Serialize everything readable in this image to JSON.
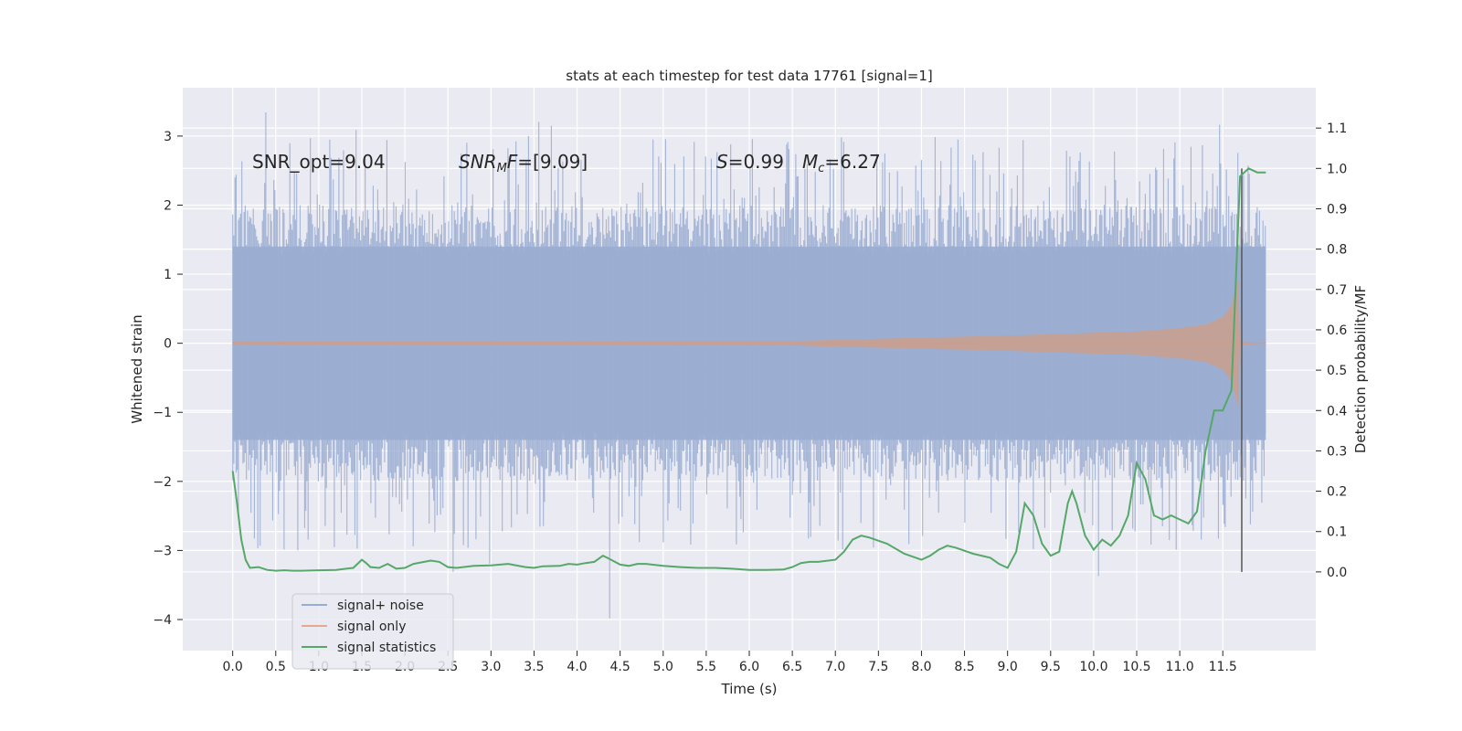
{
  "chart_data": {
    "type": "line",
    "title": "stats at each timestep for test data 17761 [signal=1]",
    "xlabel": "Time (s)",
    "ylabel": "Whitened strain",
    "ylabel_right": "Detection probability/MF",
    "xlim": [
      -0.58,
      12.58
    ],
    "ylim": [
      -4.45,
      3.7
    ],
    "ylim_right": [
      -0.195,
      1.2
    ],
    "x_ticks": [
      "0.0",
      "0.5",
      "1.0",
      "1.5",
      "2.0",
      "2.5",
      "3.0",
      "3.5",
      "4.0",
      "4.5",
      "5.0",
      "5.5",
      "6.0",
      "6.5",
      "7.0",
      "7.5",
      "8.0",
      "8.5",
      "9.0",
      "9.5",
      "10.0",
      "10.5",
      "11.0",
      "11.5"
    ],
    "y_ticks": [
      "3",
      "2",
      "1",
      "0",
      "−1",
      "−2",
      "−3",
      "−4"
    ],
    "y_ticks_right": [
      "1.1",
      "1.0",
      "0.9",
      "0.8",
      "0.7",
      "0.6",
      "0.5",
      "0.4",
      "0.3",
      "0.2",
      "0.1",
      "0.0"
    ],
    "annotations": {
      "snr_opt": "SNR_opt=9.04",
      "snr_mf_main": "SNR",
      "snr_mf_sub": "M",
      "snr_mf_rest": "F=[9.09]",
      "s_main": "S",
      "s_rest": "=0.99",
      "mc_main": "M",
      "mc_sub": "c",
      "mc_rest": "=6.27"
    },
    "grid": true,
    "legend_position": "lower-left",
    "series": [
      {
        "name": "signal+ noise",
        "color": "#9aadd1",
        "noise_band": {
          "x_start": 0.0,
          "x_end": 12.0,
          "core_amplitude": 1.4,
          "spike_max": 3.35,
          "spike_min": -4.1
        }
      },
      {
        "name": "signal only",
        "color": "#c8a090",
        "chirp_envelope": {
          "x": [
            0.0,
            6.5,
            7.0,
            8.0,
            9.0,
            10.0,
            10.5,
            11.0,
            11.3,
            11.5,
            11.6,
            11.68,
            11.7,
            12.0
          ],
          "amp": [
            0.02,
            0.03,
            0.05,
            0.08,
            0.11,
            0.15,
            0.17,
            0.22,
            0.27,
            0.38,
            0.55,
            0.93,
            0.02,
            0.0
          ]
        }
      },
      {
        "name": "signal statistics",
        "color": "#55a868",
        "x": [
          0.0,
          0.05,
          0.1,
          0.15,
          0.2,
          0.3,
          0.4,
          0.5,
          0.6,
          0.7,
          0.8,
          1.0,
          1.2,
          1.4,
          1.5,
          1.55,
          1.6,
          1.7,
          1.8,
          1.9,
          2.0,
          2.1,
          2.3,
          2.4,
          2.5,
          2.6,
          2.8,
          3.0,
          3.2,
          3.4,
          3.5,
          3.6,
          3.8,
          3.9,
          4.0,
          4.1,
          4.2,
          4.3,
          4.35,
          4.5,
          4.6,
          4.7,
          4.8,
          5.0,
          5.2,
          5.4,
          5.6,
          5.8,
          6.0,
          6.2,
          6.4,
          6.5,
          6.6,
          6.7,
          6.8,
          7.0,
          7.1,
          7.2,
          7.3,
          7.4,
          7.6,
          7.8,
          8.0,
          8.1,
          8.2,
          8.3,
          8.4,
          8.6,
          8.8,
          8.9,
          9.0,
          9.1,
          9.2,
          9.3,
          9.4,
          9.5,
          9.6,
          9.7,
          9.75,
          9.8,
          9.9,
          10.0,
          10.1,
          10.2,
          10.3,
          10.4,
          10.5,
          10.6,
          10.7,
          10.8,
          10.9,
          11.0,
          11.1,
          11.2,
          11.3,
          11.4,
          11.5,
          11.6,
          11.7,
          11.8,
          11.9,
          12.0
        ],
        "y": [
          0.25,
          0.17,
          0.08,
          0.03,
          0.01,
          0.012,
          0.005,
          0.003,
          0.004,
          0.003,
          0.003,
          0.004,
          0.005,
          0.01,
          0.03,
          0.022,
          0.012,
          0.01,
          0.02,
          0.008,
          0.01,
          0.02,
          0.028,
          0.025,
          0.012,
          0.01,
          0.015,
          0.016,
          0.02,
          0.012,
          0.01,
          0.014,
          0.015,
          0.02,
          0.018,
          0.022,
          0.025,
          0.04,
          0.035,
          0.018,
          0.015,
          0.02,
          0.02,
          0.015,
          0.012,
          0.01,
          0.01,
          0.008,
          0.005,
          0.005,
          0.006,
          0.012,
          0.022,
          0.025,
          0.025,
          0.03,
          0.05,
          0.08,
          0.09,
          0.085,
          0.07,
          0.045,
          0.03,
          0.04,
          0.055,
          0.065,
          0.06,
          0.045,
          0.035,
          0.02,
          0.01,
          0.05,
          0.17,
          0.14,
          0.07,
          0.04,
          0.05,
          0.17,
          0.2,
          0.17,
          0.09,
          0.055,
          0.08,
          0.065,
          0.09,
          0.14,
          0.27,
          0.23,
          0.14,
          0.13,
          0.14,
          0.13,
          0.12,
          0.15,
          0.3,
          0.4,
          0.4,
          0.45,
          0.98,
          1.0,
          0.99,
          0.99
        ]
      }
    ],
    "vertical_marker_x": 11.72
  }
}
